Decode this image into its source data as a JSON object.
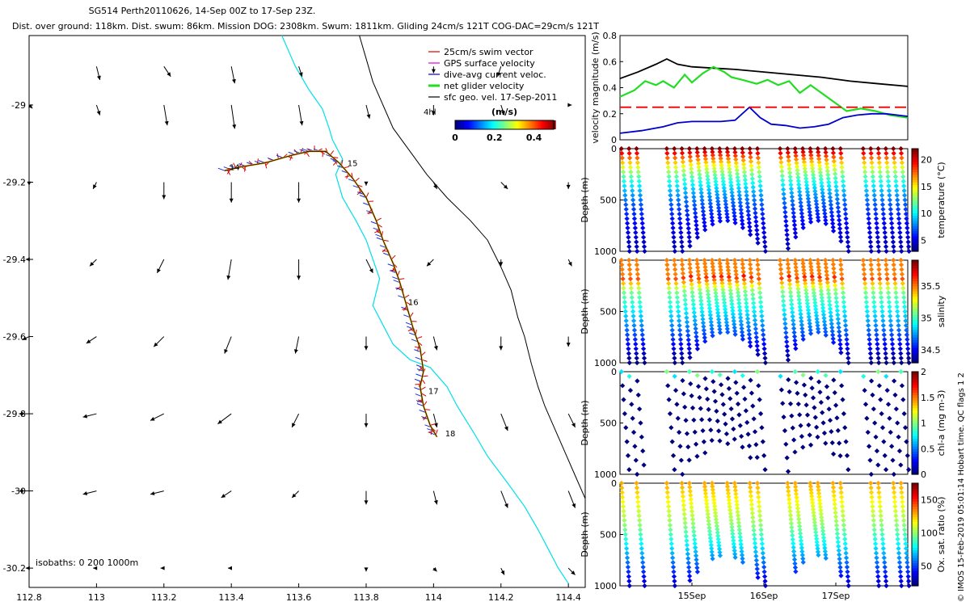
{
  "chart_data": [
    {
      "type": "map",
      "title_line1": "SG514 Perth20110626, 14-Sep 00Z to 17-Sep 23Z.",
      "title_line2": "Dist. over ground: 118km. Dist. swum: 86km. Mission DOG: 2308km. Swum: 1811km. Gliding 24cm/s 121T COG-DAC=29cm/s 121T",
      "xticks": [
        "112.8",
        "113",
        "113.2",
        "113.4",
        "113.6",
        "113.8",
        "114",
        "114.2",
        "114.4"
      ],
      "yticks": [
        "-29",
        "-29.2",
        "-29.4",
        "-29.6",
        "-29.8",
        "-30",
        "-30.2"
      ],
      "xlim": [
        112.8,
        114.45
      ],
      "ylim": [
        -30.25,
        -28.82
      ],
      "legend": [
        {
          "label": "25cm/s swim vector",
          "color": "#d40000"
        },
        {
          "label": "GPS surface velocity",
          "color": "#e000e0"
        },
        {
          "label": "dive-avg current veloc.",
          "color": "#0000cc"
        },
        {
          "label": "net glider velocity",
          "color": "#22dd22"
        },
        {
          "label": "sfc geo. vel. 17-Sep-2011",
          "color": "#000000"
        }
      ],
      "legend_extra": "4hl",
      "colorbar_label": "(m/s)",
      "colorbar_ticks": [
        "0",
        "0.2",
        "0.4"
      ],
      "isobath_label": "isobaths: 0   200   1000m",
      "day_labels": [
        {
          "label": "14",
          "lon": 113.38,
          "lat": -29.16
        },
        {
          "label": "15",
          "lon": 113.73,
          "lat": -29.15
        },
        {
          "label": "16",
          "lon": 113.91,
          "lat": -29.51
        },
        {
          "label": "17",
          "lon": 113.97,
          "lat": -29.74
        },
        {
          "label": "18",
          "lon": 114.02,
          "lat": -29.85
        }
      ],
      "track": [
        [
          113.38,
          -29.17
        ],
        [
          113.43,
          -29.16
        ],
        [
          113.5,
          -29.15
        ],
        [
          113.58,
          -29.13
        ],
        [
          113.63,
          -29.12
        ],
        [
          113.68,
          -29.12
        ],
        [
          113.72,
          -29.15
        ],
        [
          113.76,
          -29.19
        ],
        [
          113.8,
          -29.24
        ],
        [
          113.83,
          -29.3
        ],
        [
          113.85,
          -29.35
        ],
        [
          113.88,
          -29.41
        ],
        [
          113.9,
          -29.46
        ],
        [
          113.92,
          -29.52
        ],
        [
          113.94,
          -29.58
        ],
        [
          113.96,
          -29.63
        ],
        [
          113.97,
          -29.69
        ],
        [
          113.96,
          -29.73
        ],
        [
          113.97,
          -29.78
        ],
        [
          113.99,
          -29.83
        ],
        [
          114.01,
          -29.86
        ]
      ],
      "coast": [
        [
          113.55,
          -28.82
        ],
        [
          113.59,
          -28.9
        ],
        [
          113.63,
          -28.96
        ],
        [
          113.67,
          -29.01
        ],
        [
          113.69,
          -29.06
        ],
        [
          113.7,
          -29.09
        ],
        [
          113.73,
          -29.14
        ],
        [
          113.71,
          -29.18
        ],
        [
          113.73,
          -29.24
        ],
        [
          113.77,
          -29.3
        ],
        [
          113.8,
          -29.35
        ],
        [
          113.82,
          -29.4
        ],
        [
          113.84,
          -29.45
        ],
        [
          113.82,
          -29.52
        ],
        [
          113.85,
          -29.57
        ],
        [
          113.88,
          -29.62
        ],
        [
          113.93,
          -29.66
        ],
        [
          113.99,
          -29.68
        ],
        [
          114.04,
          -29.73
        ],
        [
          114.07,
          -29.78
        ],
        [
          114.12,
          -29.85
        ],
        [
          114.16,
          -29.91
        ],
        [
          114.22,
          -29.98
        ],
        [
          114.27,
          -30.04
        ],
        [
          114.31,
          -30.1
        ],
        [
          114.34,
          -30.15
        ],
        [
          114.37,
          -30.2
        ],
        [
          114.4,
          -30.24
        ]
      ],
      "isobath_1000": [
        [
          113.78,
          -28.82
        ],
        [
          113.8,
          -28.88
        ],
        [
          113.82,
          -28.94
        ],
        [
          113.85,
          -29.0
        ],
        [
          113.88,
          -29.06
        ],
        [
          113.93,
          -29.12
        ],
        [
          113.98,
          -29.18
        ],
        [
          114.04,
          -29.24
        ],
        [
          114.11,
          -29.3
        ],
        [
          114.16,
          -29.35
        ],
        [
          114.2,
          -29.42
        ],
        [
          114.23,
          -29.48
        ],
        [
          114.25,
          -29.55
        ],
        [
          114.27,
          -29.6
        ],
        [
          114.29,
          -29.67
        ],
        [
          114.31,
          -29.73
        ],
        [
          114.33,
          -29.78
        ],
        [
          114.36,
          -29.84
        ],
        [
          114.39,
          -29.9
        ],
        [
          114.42,
          -29.96
        ],
        [
          114.45,
          -30.02
        ]
      ],
      "current_field": {
        "lons": [
          112.8,
          113.0,
          113.2,
          113.4,
          113.6,
          113.8,
          114.0,
          114.2,
          114.4
        ],
        "lats": [
          -28.9,
          -29.0,
          -29.2,
          -29.4,
          -29.6,
          -29.8,
          -30.0,
          -30.2
        ],
        "u": [
          [
            0.0,
            0.01,
            0.02,
            0.01,
            0.01,
            0.0,
            0.0,
            -0.01,
            0.0
          ],
          [
            0.01,
            0.01,
            0.01,
            0.01,
            0.01,
            0.01,
            0.0,
            0.01,
            0.01
          ],
          [
            0.0,
            -0.01,
            0.0,
            0.0,
            0.0,
            0.0,
            0.01,
            0.02,
            0.0
          ],
          [
            -0.01,
            -0.02,
            -0.02,
            -0.01,
            0.0,
            0.02,
            -0.02,
            0.0,
            0.01
          ],
          [
            -0.02,
            -0.03,
            -0.03,
            -0.02,
            -0.01,
            0.0,
            0.01,
            0.0,
            0.0
          ],
          [
            -0.03,
            -0.04,
            -0.04,
            -0.04,
            -0.02,
            0.0,
            0.01,
            0.02,
            0.02
          ],
          [
            -0.03,
            -0.04,
            -0.04,
            -0.03,
            -0.02,
            0.0,
            0.01,
            0.02,
            0.02
          ],
          [
            -0.01,
            -0.01,
            -0.01,
            -0.01,
            0.0,
            0.0,
            0.01,
            0.01,
            0.02
          ]
        ],
        "v": [
          [
            0.0,
            -0.04,
            -0.03,
            -0.05,
            -0.03,
            0.0,
            -0.02,
            -0.03,
            0.0
          ],
          [
            -0.01,
            -0.03,
            -0.06,
            -0.07,
            -0.06,
            -0.04,
            -0.03,
            -0.03,
            0.0
          ],
          [
            -0.01,
            -0.02,
            -0.05,
            -0.06,
            -0.06,
            -0.01,
            -0.02,
            -0.02,
            -0.02
          ],
          [
            0.0,
            -0.02,
            -0.04,
            -0.06,
            -0.06,
            -0.04,
            -0.02,
            -0.02,
            -0.02
          ],
          [
            -0.01,
            -0.02,
            -0.03,
            -0.05,
            -0.05,
            -0.04,
            -0.04,
            -0.04,
            -0.03
          ],
          [
            0.0,
            -0.01,
            -0.02,
            -0.03,
            -0.04,
            -0.04,
            -0.04,
            -0.05,
            -0.04
          ],
          [
            0.0,
            -0.01,
            -0.01,
            -0.02,
            -0.02,
            -0.04,
            -0.04,
            -0.05,
            -0.05
          ],
          [
            0.0,
            0.0,
            0.0,
            0.0,
            0.0,
            -0.01,
            -0.01,
            -0.02,
            -0.02
          ]
        ]
      }
    },
    {
      "type": "line",
      "ylabel": "velocity magnitude (m/s)",
      "yticks": [
        "0",
        "0.2",
        "0.4",
        "0.6",
        "0.8"
      ],
      "ylim": [
        0,
        0.8
      ],
      "xlim": [
        14.0,
        18.0
      ],
      "series": [
        {
          "color": "#000000",
          "x": [
            14.0,
            14.25,
            14.5,
            14.65,
            14.8,
            15.0,
            15.3,
            15.6,
            16.0,
            16.4,
            16.8,
            17.2,
            17.6,
            18.0
          ],
          "values": [
            0.47,
            0.52,
            0.58,
            0.62,
            0.58,
            0.56,
            0.55,
            0.54,
            0.52,
            0.5,
            0.48,
            0.45,
            0.43,
            0.41
          ]
        },
        {
          "color": "#22dd22",
          "x": [
            14.0,
            14.2,
            14.35,
            14.5,
            14.6,
            14.75,
            14.9,
            15.0,
            15.15,
            15.3,
            15.45,
            15.55,
            15.7,
            15.9,
            16.05,
            16.2,
            16.35,
            16.5,
            16.65,
            16.8,
            16.95,
            17.15,
            17.35,
            17.55,
            17.75,
            18.0
          ],
          "values": [
            0.33,
            0.38,
            0.45,
            0.42,
            0.45,
            0.4,
            0.5,
            0.44,
            0.51,
            0.56,
            0.52,
            0.48,
            0.46,
            0.43,
            0.46,
            0.42,
            0.45,
            0.36,
            0.42,
            0.36,
            0.3,
            0.22,
            0.24,
            0.22,
            0.19,
            0.17
          ]
        },
        {
          "color": "#0000cc",
          "x": [
            14.0,
            14.3,
            14.6,
            14.8,
            15.0,
            15.2,
            15.4,
            15.6,
            15.8,
            15.95,
            16.1,
            16.3,
            16.5,
            16.7,
            16.9,
            17.1,
            17.3,
            17.5,
            17.7,
            18.0
          ],
          "values": [
            0.05,
            0.07,
            0.1,
            0.13,
            0.14,
            0.14,
            0.14,
            0.15,
            0.25,
            0.17,
            0.12,
            0.11,
            0.09,
            0.1,
            0.12,
            0.17,
            0.19,
            0.2,
            0.2,
            0.18
          ]
        },
        {
          "color": "#ee0000",
          "x": [
            14.0,
            18.0
          ],
          "values": [
            0.25,
            0.25
          ],
          "dash": true
        }
      ]
    },
    {
      "type": "scatter",
      "ylabel": "Depth (m)",
      "yticks": [
        "0",
        "500",
        "1000"
      ],
      "ylim": [
        1000,
        0
      ],
      "xlim": [
        14.0,
        18.0
      ],
      "colorbar_label": "temperature (°C)",
      "colorbar_ticks": [
        "5",
        "10",
        "15",
        "20"
      ],
      "color_range": [
        3,
        22
      ]
    },
    {
      "type": "scatter",
      "ylabel": "Depth (m)",
      "yticks": [
        "0",
        "500",
        "1000"
      ],
      "ylim": [
        1000,
        0
      ],
      "xlim": [
        14.0,
        18.0
      ],
      "colorbar_label": "salinity",
      "colorbar_ticks": [
        "34.5",
        "35",
        "35.5"
      ],
      "color_range": [
        34.3,
        35.9
      ]
    },
    {
      "type": "scatter",
      "ylabel": "Depth (m)",
      "yticks": [
        "0",
        "500",
        "1000"
      ],
      "ylim": [
        1000,
        0
      ],
      "xlim": [
        14.0,
        18.0
      ],
      "colorbar_label": "chl-a (mg m-3)",
      "colorbar_ticks": [
        "0",
        "0.5",
        "1",
        "1.5",
        "2"
      ],
      "color_range": [
        0,
        2
      ]
    },
    {
      "type": "scatter",
      "ylabel": "Depth (m)",
      "yticks": [
        "0",
        "500",
        "1000"
      ],
      "ylim": [
        1000,
        0
      ],
      "xlim": [
        14.0,
        18.0
      ],
      "xticks": [
        "15Sep",
        "16Sep",
        "17Sep"
      ],
      "colorbar_label": "Ox. sat. ratio (%)",
      "colorbar_ticks": [
        "50",
        "100",
        "150"
      ],
      "color_range": [
        20,
        175
      ]
    }
  ],
  "footer_note": "© IMOS 15-Feb-2019 05:01:14 Hobart time. QC flags 1  2"
}
